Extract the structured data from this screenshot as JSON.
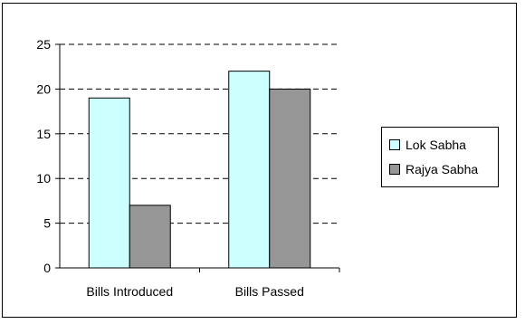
{
  "chart_data": {
    "type": "bar",
    "categories": [
      "Bills Introduced",
      "Bills Passed"
    ],
    "series": [
      {
        "name": "Lok Sabha",
        "values": [
          19,
          22
        ],
        "color": "#ccffff"
      },
      {
        "name": "Rajya Sabha",
        "values": [
          7,
          20
        ],
        "color": "#969696"
      }
    ],
    "ylim": [
      0,
      25
    ],
    "yticks": [
      "0",
      "5",
      "10",
      "15",
      "20",
      "25"
    ],
    "grid": true,
    "legend_position": "right"
  }
}
